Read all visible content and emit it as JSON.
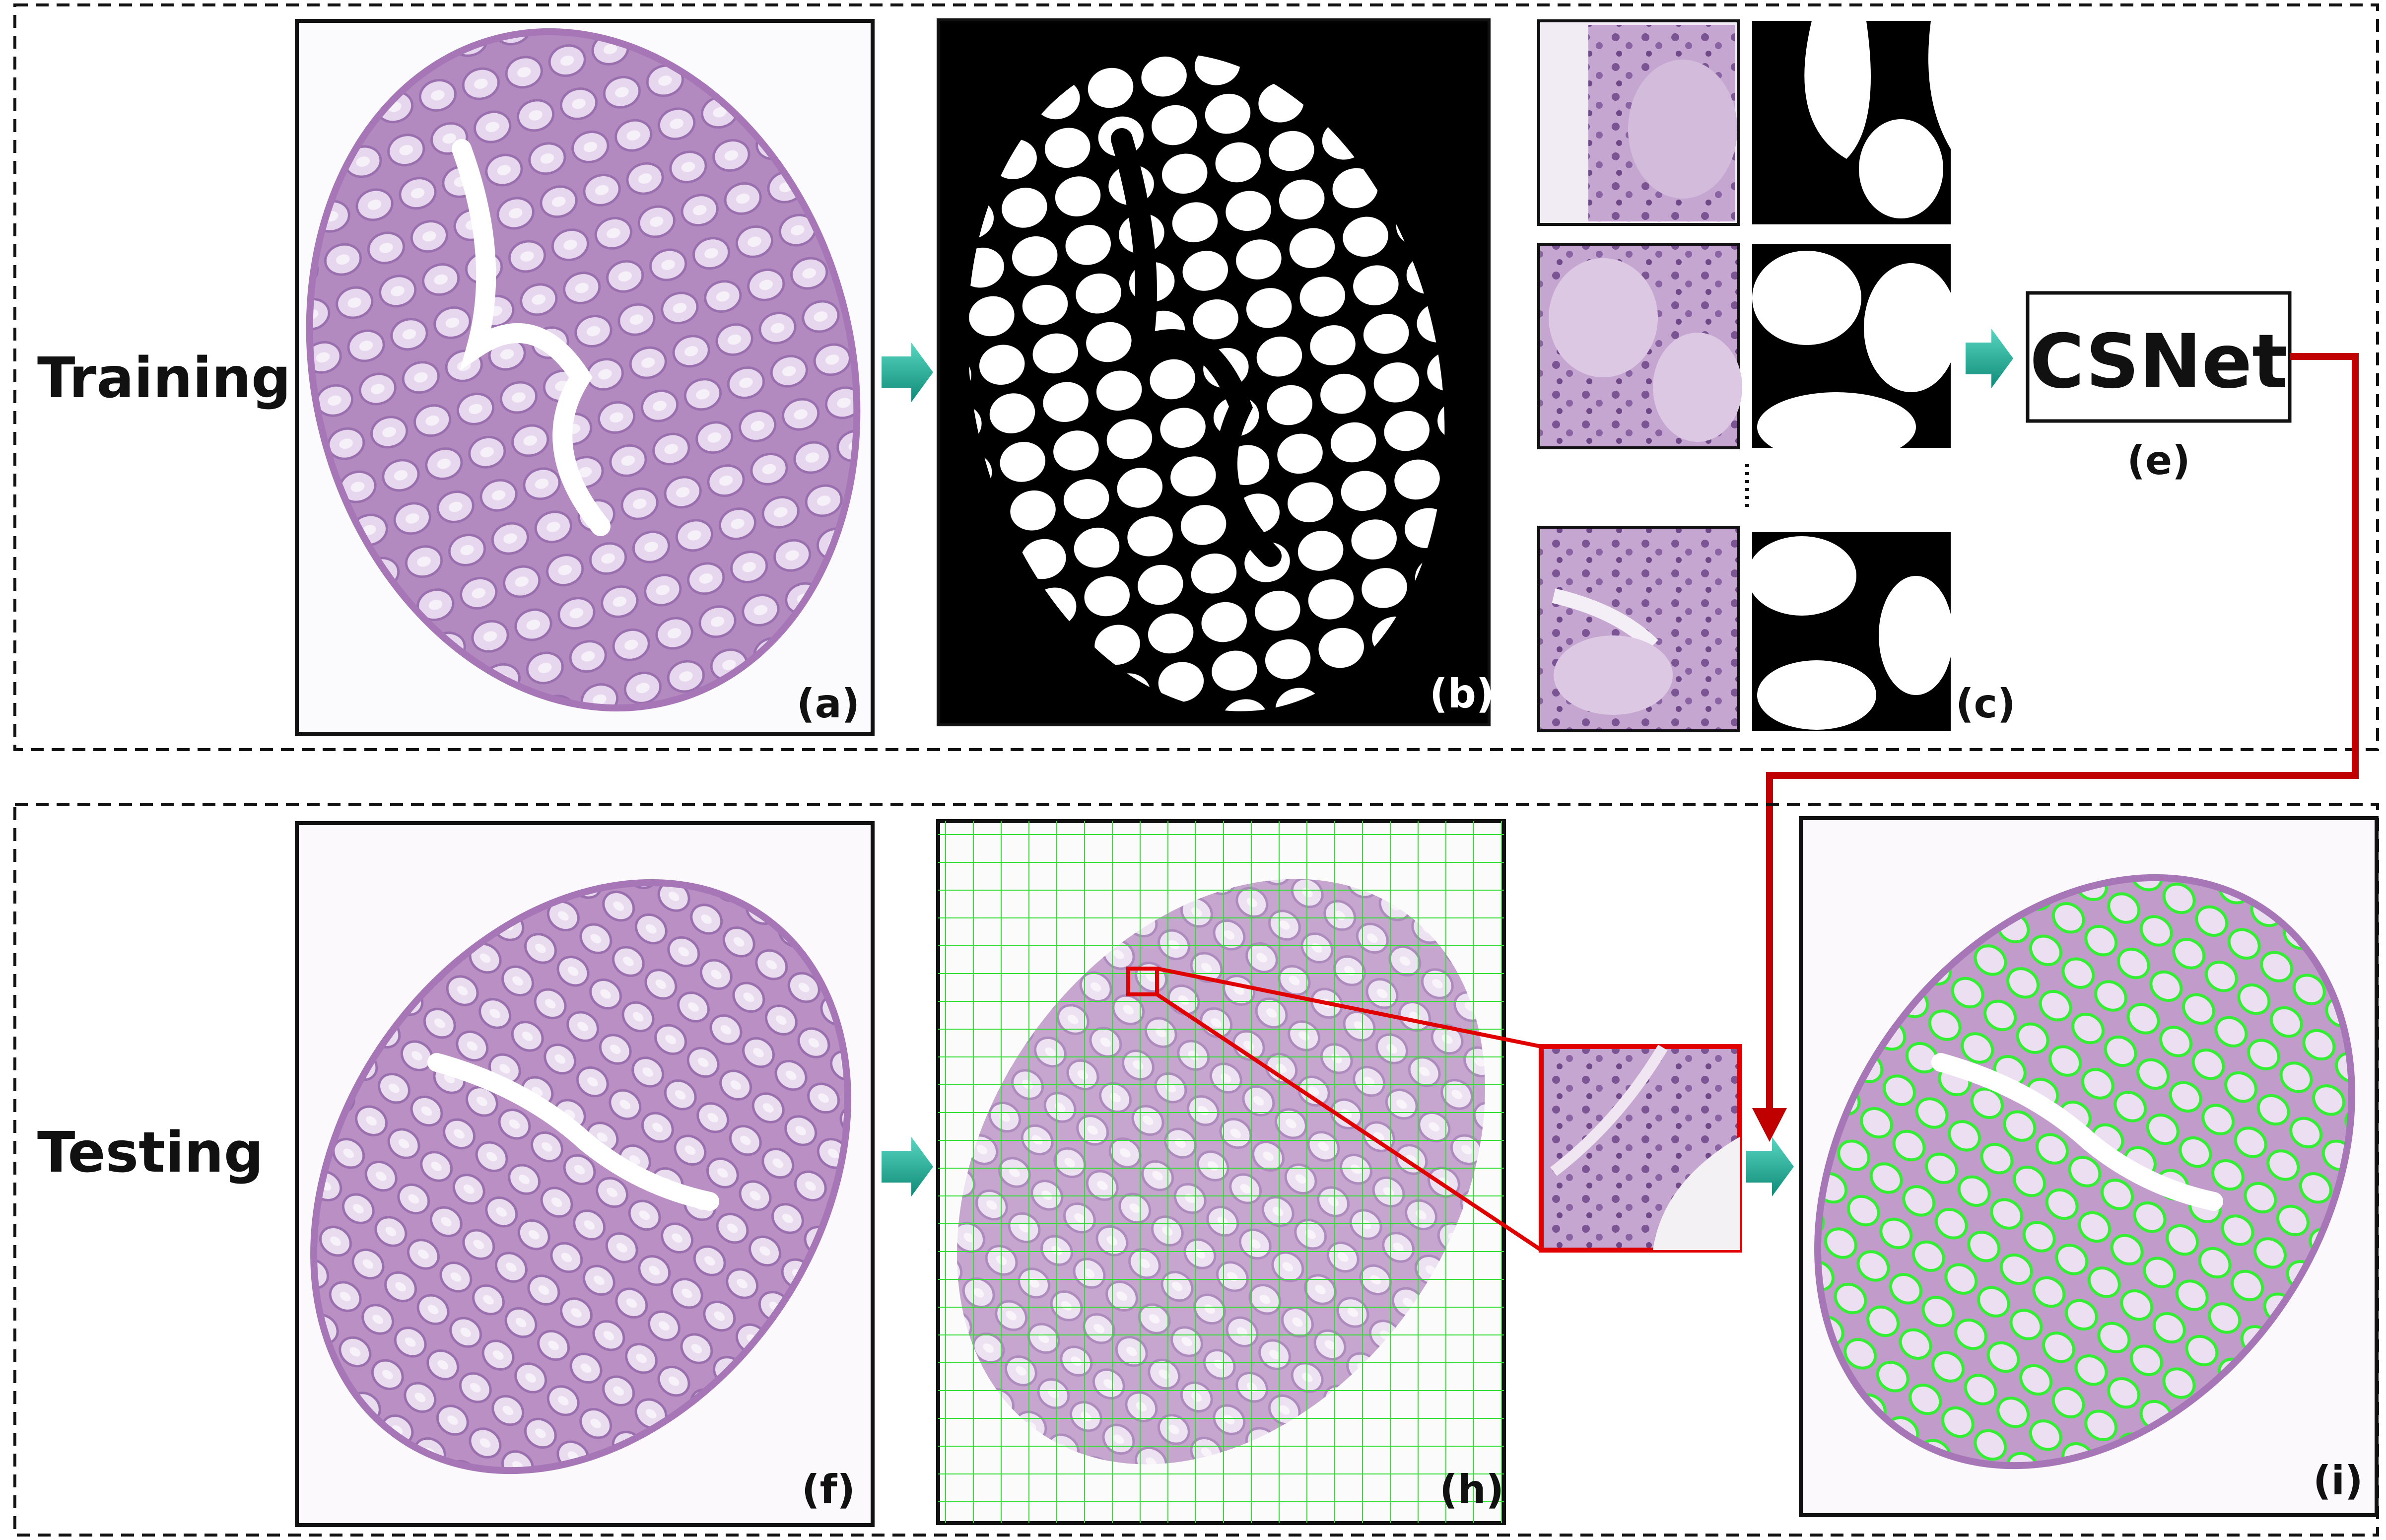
{
  "sections": {
    "training": {
      "label": "Training"
    },
    "testing": {
      "label": "Testing"
    }
  },
  "panels": {
    "a": "(a)",
    "b": "(b)",
    "c": "(c)",
    "e": "(e)",
    "f": "(f)",
    "h": "(h)",
    "i": "(i)"
  },
  "network": {
    "name": "CSNet"
  },
  "colors": {
    "tissue": "#b38ac0",
    "tubule_fill": "#e6d7ee",
    "tubule_edge": "#9a6fae",
    "grid": "#33dd33",
    "contour": "#33ee33",
    "link_arrow": "#c00000",
    "flow_arrow": "#1a9a8a"
  }
}
